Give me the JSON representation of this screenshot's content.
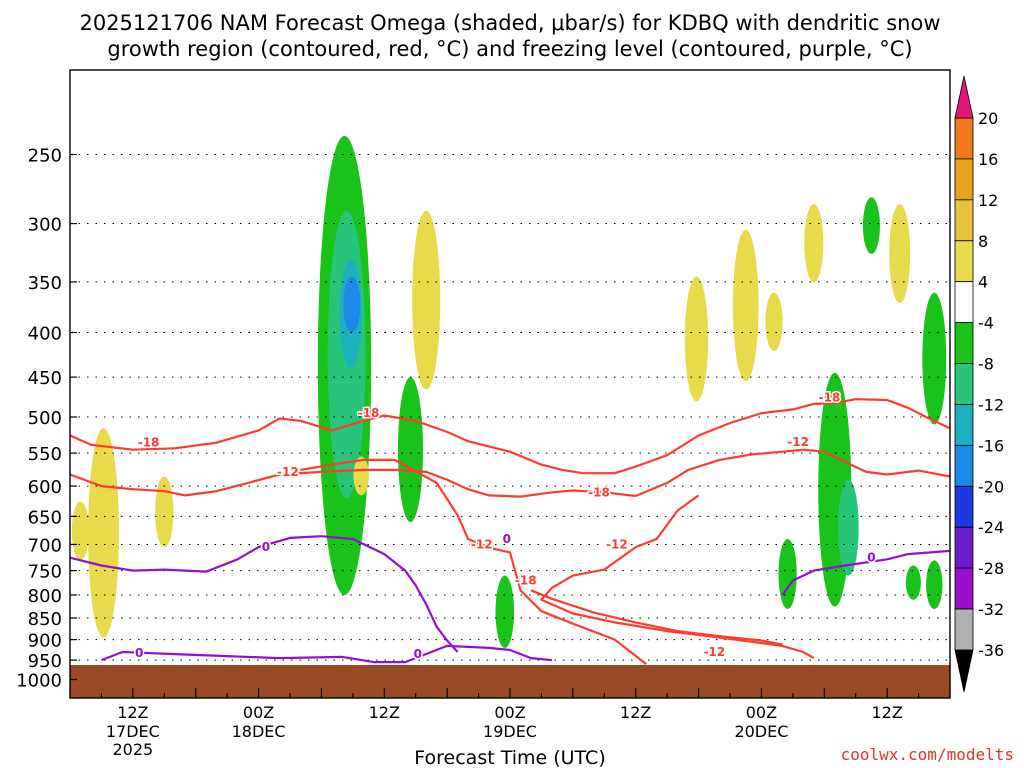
{
  "title_line1": "2025121706 NAM Forecast Omega (shaded, μbar/s) for KDBQ with dendritic snow",
  "title_line2": "growth region (contoured, red, °C) and freezing level (contoured, purple, °C)",
  "credit": "coolwx.com/modelts",
  "colors": {
    "ground": "#9a4a24",
    "dendritic": "#ff3b30",
    "freezing": "#9010d0"
  },
  "chart_data": {
    "type": "heatmap",
    "title": "2025121706 NAM Forecast Omega (shaded, μbar/s) for KDBQ with dendritic snow growth region (contoured, red, °C) and freezing level (contoured, purple, °C)",
    "xlabel": "Forecast Time (UTC)",
    "ylabel": "",
    "xlim_hours": [
      0,
      84
    ],
    "ylim_hpa": [
      1050,
      200
    ],
    "y_axis_scale": "log-pressure",
    "y_ticks": [
      250,
      300,
      350,
      400,
      450,
      500,
      550,
      600,
      650,
      700,
      750,
      800,
      850,
      900,
      950,
      1000
    ],
    "x_ticks": [
      {
        "hour": 6,
        "label": "12Z",
        "sub1": "17DEC",
        "sub2": "2025"
      },
      {
        "hour": 18,
        "label": "00Z",
        "sub1": "18DEC",
        "sub2": ""
      },
      {
        "hour": 30,
        "label": "12Z",
        "sub1": "",
        "sub2": ""
      },
      {
        "hour": 42,
        "label": "00Z",
        "sub1": "19DEC",
        "sub2": ""
      },
      {
        "hour": 54,
        "label": "12Z",
        "sub1": "",
        "sub2": ""
      },
      {
        "hour": 66,
        "label": "00Z",
        "sub1": "20DEC",
        "sub2": ""
      },
      {
        "hour": 78,
        "label": "12Z",
        "sub1": "",
        "sub2": ""
      }
    ],
    "colorbar": [
      {
        "label": "20",
        "color": "#ff3a3a"
      },
      {
        "label": "16",
        "color": "#ee7a1a"
      },
      {
        "label": "12",
        "color": "#e9a21c"
      },
      {
        "label": "8",
        "color": "#e9c23b"
      },
      {
        "label": "4",
        "color": "#e8da4a"
      },
      {
        "label": "-4",
        "color": "#ffffff"
      },
      {
        "label": "-8",
        "color": "#19c319"
      },
      {
        "label": "-12",
        "color": "#27c47a"
      },
      {
        "label": "-16",
        "color": "#1cb0c0"
      },
      {
        "label": "-20",
        "color": "#1a8ae6"
      },
      {
        "label": "-24",
        "color": "#1a3ae0"
      },
      {
        "label": "-28",
        "color": "#6a1ac8"
      },
      {
        "label": "-32",
        "color": "#9a10c8"
      },
      {
        "label": "-36",
        "color": "#b0b0b0"
      }
    ],
    "colorbar_top_color": "#e0187a",
    "colorbar_bottom_color": "#000000",
    "contour_labels": [
      {
        "text": "-18",
        "hour": 7.5,
        "hpa": 535,
        "series": "dendritic"
      },
      {
        "text": "-18",
        "hour": 28.5,
        "hpa": 495,
        "series": "dendritic"
      },
      {
        "text": "-18",
        "hour": 50.5,
        "hpa": 610,
        "series": "dendritic"
      },
      {
        "text": "-18",
        "hour": 72.5,
        "hpa": 475,
        "series": "dendritic"
      },
      {
        "text": "-18",
        "hour": 43.5,
        "hpa": 770,
        "series": "dendritic"
      },
      {
        "text": "-12",
        "hour": 20.8,
        "hpa": 578,
        "series": "dendritic"
      },
      {
        "text": "-12",
        "hour": 39.3,
        "hpa": 700,
        "series": "dendritic"
      },
      {
        "text": "-12",
        "hour": 52.2,
        "hpa": 700,
        "series": "dendritic"
      },
      {
        "text": "-12",
        "hour": 69.5,
        "hpa": 534,
        "series": "dendritic"
      },
      {
        "text": "-12",
        "hour": 61.5,
        "hpa": 930,
        "series": "dendritic"
      },
      {
        "text": "0",
        "hour": 18.7,
        "hpa": 705,
        "series": "freezing"
      },
      {
        "text": "0",
        "hour": 41.7,
        "hpa": 690,
        "series": "freezing"
      },
      {
        "text": "0",
        "hour": 76.5,
        "hpa": 725,
        "series": "freezing"
      },
      {
        "text": "0",
        "hour": 6.6,
        "hpa": 932,
        "series": "freezing"
      },
      {
        "text": "0",
        "hour": 33.2,
        "hpa": 935,
        "series": "freezing"
      }
    ],
    "omega_regions": [
      {
        "hour": 3.2,
        "hpa_top": 515,
        "hpa_bottom": 895,
        "value": 6
      },
      {
        "hour": 1.0,
        "hpa_top": 625,
        "hpa_bottom": 730,
        "value": 6
      },
      {
        "hour": 9.0,
        "hpa_top": 585,
        "hpa_bottom": 705,
        "value": 6
      },
      {
        "hour": 26.2,
        "hpa_top": 238,
        "hpa_bottom": 800,
        "value": -8
      },
      {
        "hour": 26.4,
        "hpa_top": 290,
        "hpa_bottom": 620,
        "value": -12
      },
      {
        "hour": 26.8,
        "hpa_top": 330,
        "hpa_bottom": 440,
        "value": -16
      },
      {
        "hour": 26.9,
        "hpa_top": 345,
        "hpa_bottom": 400,
        "value": -20
      },
      {
        "hour": 34.0,
        "hpa_top": 290,
        "hpa_bottom": 465,
        "value": 6
      },
      {
        "hour": 27.8,
        "hpa_top": 555,
        "hpa_bottom": 615,
        "value": 6
      },
      {
        "hour": 32.5,
        "hpa_top": 450,
        "hpa_bottom": 660,
        "value": -8
      },
      {
        "hour": 41.5,
        "hpa_top": 760,
        "hpa_bottom": 920,
        "value": -8
      },
      {
        "hour": 59.8,
        "hpa_top": 345,
        "hpa_bottom": 480,
        "value": 6
      },
      {
        "hour": 64.5,
        "hpa_top": 305,
        "hpa_bottom": 455,
        "value": 6
      },
      {
        "hour": 67.2,
        "hpa_top": 360,
        "hpa_bottom": 420,
        "value": 6
      },
      {
        "hour": 71.0,
        "hpa_top": 285,
        "hpa_bottom": 350,
        "value": 6
      },
      {
        "hour": 76.5,
        "hpa_top": 280,
        "hpa_bottom": 325,
        "value": -8
      },
      {
        "hour": 79.2,
        "hpa_top": 285,
        "hpa_bottom": 370,
        "value": 6
      },
      {
        "hour": 73.0,
        "hpa_top": 445,
        "hpa_bottom": 825,
        "value": -8
      },
      {
        "hour": 74.3,
        "hpa_top": 590,
        "hpa_bottom": 760,
        "value": -12
      },
      {
        "hour": 68.5,
        "hpa_top": 690,
        "hpa_bottom": 830,
        "value": -8
      },
      {
        "hour": 82.5,
        "hpa_top": 360,
        "hpa_bottom": 510,
        "value": -8
      },
      {
        "hour": 80.5,
        "hpa_top": 740,
        "hpa_bottom": 810,
        "value": -8
      },
      {
        "hour": 82.5,
        "hpa_top": 730,
        "hpa_bottom": 830,
        "value": -8
      }
    ],
    "series": [
      {
        "name": "-18 °C upper",
        "color": "#ff3b30",
        "points": [
          [
            0,
            525
          ],
          [
            2,
            538
          ],
          [
            6,
            545
          ],
          [
            10,
            543
          ],
          [
            14,
            535
          ],
          [
            18,
            518
          ],
          [
            20,
            502
          ],
          [
            22,
            505
          ],
          [
            25,
            518
          ],
          [
            28,
            505
          ],
          [
            30,
            498
          ],
          [
            33,
            505
          ],
          [
            36,
            520
          ],
          [
            38,
            533
          ],
          [
            42,
            548
          ],
          [
            45,
            567
          ],
          [
            47,
            575
          ],
          [
            49,
            580
          ],
          [
            52,
            580
          ],
          [
            54,
            570
          ],
          [
            57,
            553
          ],
          [
            60,
            525
          ],
          [
            63,
            508
          ],
          [
            66,
            495
          ],
          [
            69,
            490
          ],
          [
            71,
            483
          ],
          [
            73,
            482
          ],
          [
            75,
            477
          ],
          [
            78,
            478
          ],
          [
            80,
            488
          ],
          [
            82,
            502
          ],
          [
            84,
            515
          ]
        ]
      },
      {
        "name": "-18 °C lower",
        "color": "#ff3b30",
        "points": [
          [
            0,
            582
          ],
          [
            3,
            600
          ],
          [
            6,
            605
          ],
          [
            9,
            608
          ],
          [
            11,
            615
          ],
          [
            14,
            608
          ],
          [
            17,
            595
          ],
          [
            20,
            582
          ],
          [
            24,
            578
          ],
          [
            28,
            575
          ],
          [
            31,
            575
          ],
          [
            34,
            578
          ],
          [
            36,
            590
          ],
          [
            38,
            605
          ],
          [
            40,
            615
          ],
          [
            43,
            617
          ],
          [
            46,
            610
          ],
          [
            48,
            607
          ],
          [
            51,
            610
          ],
          [
            54,
            616
          ]
        ]
      },
      {
        "name": "-12 °C",
        "color": "#ff3b30",
        "points": [
          [
            54,
            616
          ],
          [
            57,
            595
          ],
          [
            59,
            575
          ],
          [
            62,
            560
          ],
          [
            65,
            552
          ],
          [
            68,
            548
          ],
          [
            70,
            545
          ],
          [
            72,
            548
          ],
          [
            74,
            563
          ],
          [
            76,
            578
          ],
          [
            78,
            582
          ],
          [
            81,
            576
          ],
          [
            84,
            585
          ]
        ]
      },
      {
        "name": "-12 °C mid",
        "color": "#ff3b30",
        "points": [
          [
            22,
            575
          ],
          [
            25,
            567
          ],
          [
            28,
            560
          ],
          [
            31,
            560
          ],
          [
            35,
            595
          ],
          [
            37,
            648
          ],
          [
            38,
            690
          ],
          [
            40,
            706
          ],
          [
            42,
            715
          ],
          [
            43,
            790
          ],
          [
            45,
            835
          ],
          [
            48,
            863
          ],
          [
            52,
            900
          ],
          [
            55,
            960
          ]
        ]
      },
      {
        "name": "-12 °C south",
        "color": "#ff3b30",
        "points": [
          [
            60,
            615
          ],
          [
            58,
            640
          ],
          [
            56,
            690
          ],
          [
            54,
            705
          ],
          [
            51,
            748
          ],
          [
            48,
            760
          ],
          [
            46,
            785
          ],
          [
            45,
            810
          ],
          [
            48,
            840
          ],
          [
            52,
            860
          ],
          [
            57,
            880
          ],
          [
            62,
            895
          ],
          [
            65,
            905
          ],
          [
            68,
            915
          ],
          [
            70,
            930
          ],
          [
            71,
            945
          ]
        ]
      },
      {
        "name": "-18 °C south",
        "color": "#ff3b30",
        "points": [
          [
            44,
            790
          ],
          [
            46,
            808
          ],
          [
            50,
            838
          ],
          [
            54,
            860
          ],
          [
            58,
            880
          ],
          [
            62,
            892
          ],
          [
            66,
            902
          ],
          [
            68,
            912
          ]
        ]
      },
      {
        "name": "0 °C freezing",
        "color": "#9010d0",
        "points": [
          [
            0,
            725
          ],
          [
            3,
            740
          ],
          [
            6,
            750
          ],
          [
            9,
            748
          ],
          [
            13,
            752
          ],
          [
            16,
            728
          ],
          [
            18,
            705
          ],
          [
            21,
            688
          ],
          [
            24,
            685
          ],
          [
            27,
            690
          ],
          [
            30,
            718
          ],
          [
            32,
            750
          ],
          [
            33,
            780
          ],
          [
            34,
            820
          ],
          [
            35,
            870
          ],
          [
            36,
            902
          ],
          [
            37,
            930
          ]
        ]
      },
      {
        "name": "0 °C east",
        "color": "#9010d0",
        "points": [
          [
            68,
            800
          ],
          [
            69,
            770
          ],
          [
            71,
            750
          ],
          [
            74,
            740
          ],
          [
            78,
            728
          ],
          [
            80,
            718
          ],
          [
            82,
            715
          ],
          [
            84,
            712
          ]
        ]
      },
      {
        "name": "0 °C surface",
        "color": "#9010d0",
        "points": [
          [
            3,
            950
          ],
          [
            5,
            930
          ],
          [
            10,
            935
          ],
          [
            15,
            940
          ],
          [
            20,
            945
          ],
          [
            26,
            942
          ],
          [
            29,
            955
          ],
          [
            32,
            955
          ],
          [
            36,
            915
          ],
          [
            40,
            920
          ],
          [
            42,
            925
          ],
          [
            44,
            945
          ],
          [
            46,
            950
          ]
        ]
      }
    ]
  }
}
